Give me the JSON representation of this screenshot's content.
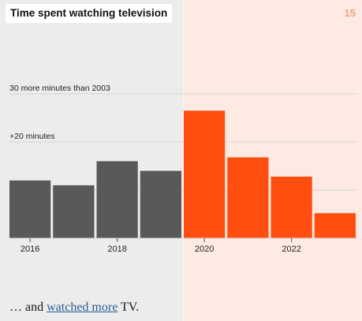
{
  "title": "Time spent watching television",
  "page_number": "15",
  "caption": {
    "prefix": "… and ",
    "link_text": "watched more",
    "suffix": " TV."
  },
  "colors": {
    "pre_pandemic": "#58595b",
    "pandemic": "#ff4e0f",
    "left_background": "#ececec",
    "right_background": "#fdebe3",
    "page_number": "#f7a37e",
    "link": "#2a5e93"
  },
  "chart_data": {
    "type": "bar",
    "title": "Time spent watching television",
    "xlabel": "",
    "ylabel": "",
    "unit": "minutes more than 2003",
    "x": [
      2016,
      2017,
      2018,
      2019,
      2020,
      2021,
      2022,
      2023
    ],
    "x_tick_labels": [
      "2016",
      "2018",
      "2020",
      "2022"
    ],
    "values": [
      12,
      11,
      16,
      14,
      26.5,
      16.8,
      12.8,
      5.2
    ],
    "highlight_from": 2020,
    "ylim": [
      0,
      30
    ],
    "reference_lines": [
      {
        "value": 30,
        "label": "30 more minutes than 2003"
      },
      {
        "value": 20,
        "label": "+20 minutes"
      },
      {
        "value": 10,
        "label": ""
      }
    ],
    "grid": true,
    "legend": "none"
  }
}
